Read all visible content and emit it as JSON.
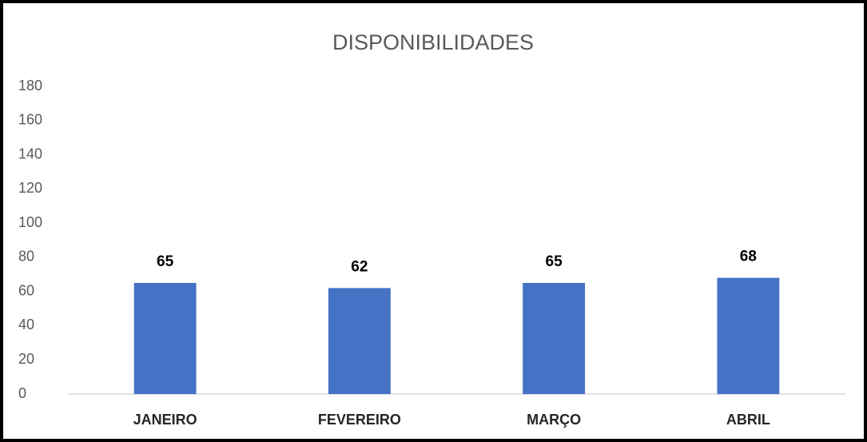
{
  "chart_data": {
    "type": "bar",
    "title": "DISPONIBILIDADES",
    "categories": [
      "JANEIRO",
      "FEVEREIRO",
      "MARÇO",
      "ABRIL"
    ],
    "values": [
      65,
      62,
      65,
      68
    ],
    "color": "#4472c4",
    "ylim": [
      0,
      180
    ],
    "yticks": [
      0,
      20,
      40,
      60,
      80,
      100,
      120,
      140,
      160,
      180
    ],
    "grid": false
  }
}
